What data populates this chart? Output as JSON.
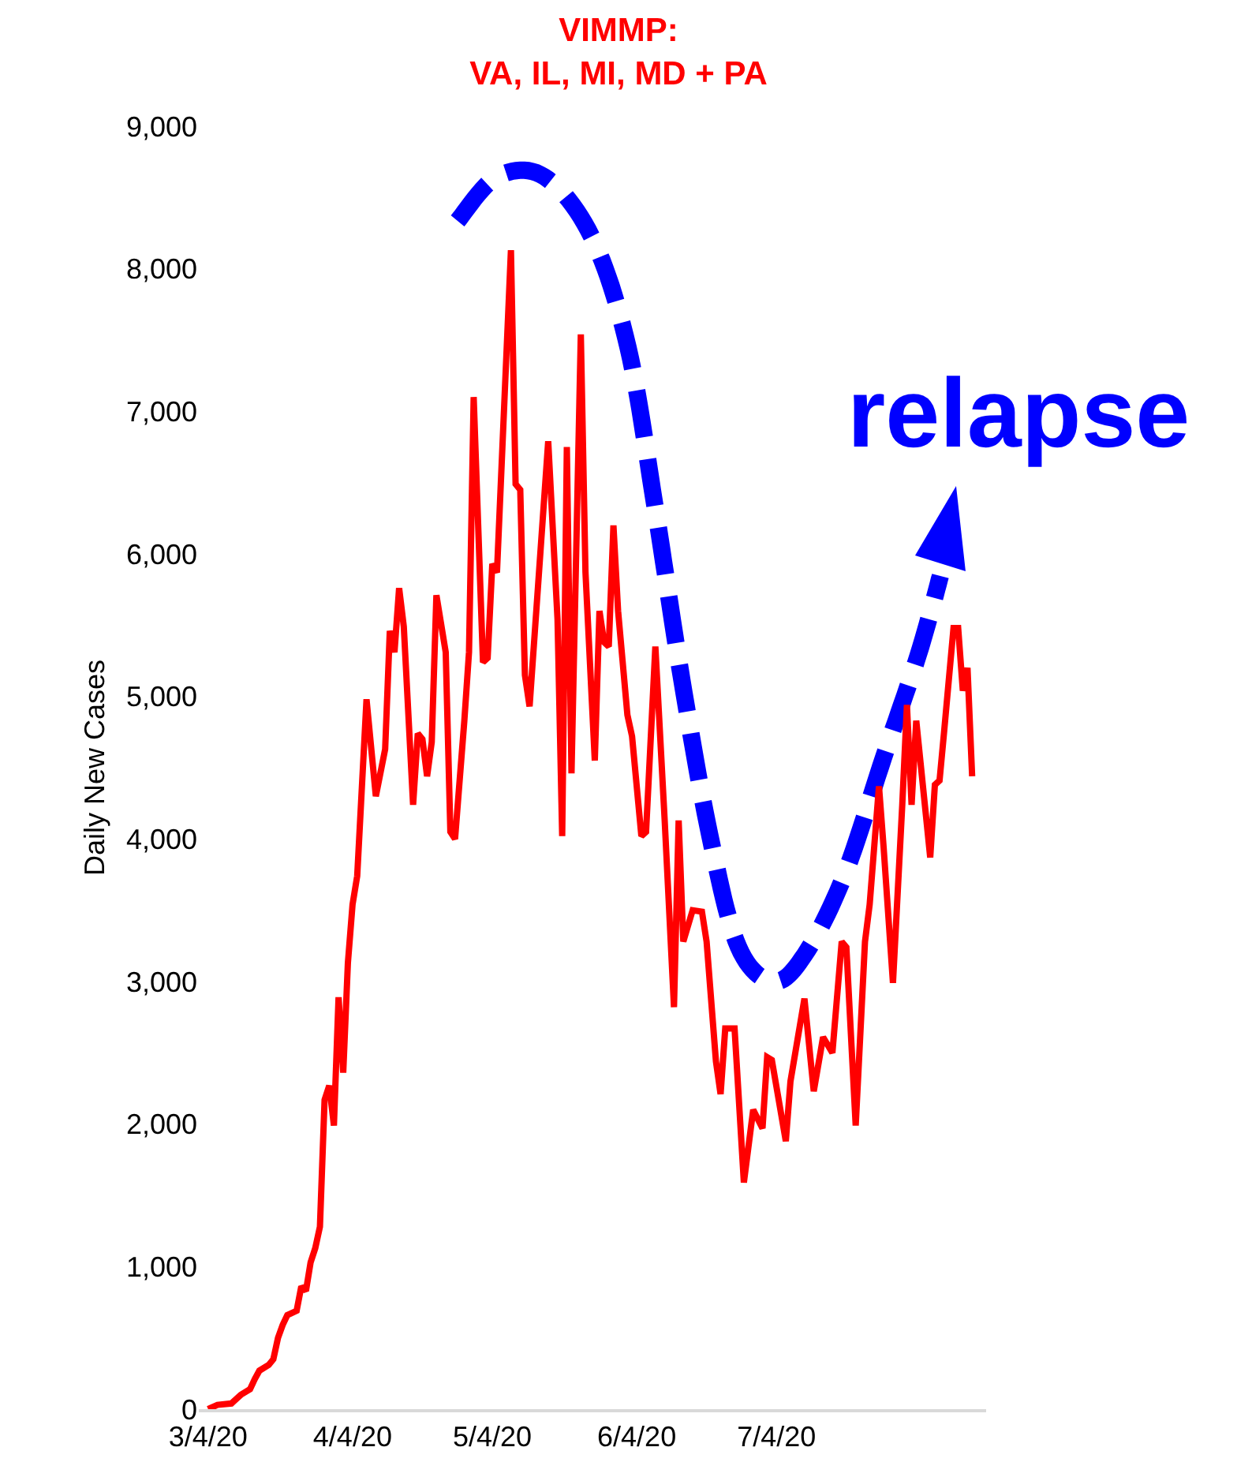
{
  "chart_data": {
    "type": "line",
    "title": "VIMMP:\nVA, IL, MI, MD + PA",
    "ylabel": "Daily New Cases",
    "x": [
      "2020-03-04",
      "2020-03-06",
      "2020-03-09",
      "2020-03-11",
      "2020-03-13",
      "2020-03-14",
      "2020-03-15",
      "2020-03-17",
      "2020-03-18",
      "2020-03-19",
      "2020-03-20",
      "2020-03-21",
      "2020-03-23",
      "2020-03-24",
      "2020-03-25",
      "2020-03-26",
      "2020-03-27",
      "2020-03-28",
      "2020-03-29",
      "2020-03-30",
      "2020-03-31",
      "2020-04-01",
      "2020-04-02",
      "2020-04-03",
      "2020-04-04",
      "2020-04-05",
      "2020-04-07",
      "2020-04-09",
      "2020-04-11",
      "2020-04-12",
      "2020-04-13",
      "2020-04-14",
      "2020-04-15",
      "2020-04-17",
      "2020-04-18",
      "2020-04-19",
      "2020-04-20",
      "2020-04-21",
      "2020-04-22",
      "2020-04-24",
      "2020-04-25",
      "2020-04-26",
      "2020-04-28",
      "2020-04-29",
      "2020-04-30",
      "2020-05-02",
      "2020-05-03",
      "2020-05-04",
      "2020-05-05",
      "2020-05-08",
      "2020-05-09",
      "2020-05-10",
      "2020-05-11",
      "2020-05-12",
      "2020-05-16",
      "2020-05-18",
      "2020-05-19",
      "2020-05-20",
      "2020-05-21",
      "2020-05-23",
      "2020-05-24",
      "2020-05-26",
      "2020-05-27",
      "2020-05-28",
      "2020-05-29",
      "2020-05-30",
      "2020-05-31",
      "2020-06-02",
      "2020-06-03",
      "2020-06-05",
      "2020-06-06",
      "2020-06-08",
      "2020-06-10",
      "2020-06-12",
      "2020-06-13",
      "2020-06-14",
      "2020-06-16",
      "2020-06-18",
      "2020-06-19",
      "2020-06-21",
      "2020-06-22",
      "2020-06-23",
      "2020-06-25",
      "2020-06-27",
      "2020-06-29",
      "2020-07-01",
      "2020-07-02",
      "2020-07-03",
      "2020-07-06",
      "2020-07-07",
      "2020-07-10",
      "2020-07-12",
      "2020-07-14",
      "2020-07-16",
      "2020-07-18",
      "2020-07-19",
      "2020-07-21",
      "2020-07-23",
      "2020-07-24",
      "2020-07-26",
      "2020-07-27",
      "2020-07-29",
      "2020-07-31",
      "2020-08-01",
      "2020-08-02",
      "2020-08-03",
      "2020-08-06",
      "2020-08-07",
      "2020-08-08",
      "2020-08-09",
      "2020-08-11",
      "2020-08-12",
      "2020-08-13",
      "2020-08-14",
      "2020-08-15"
    ],
    "series": [
      {
        "color": "#ff0000",
        "values": [
          0,
          30,
          40,
          100,
          140,
          210,
          270,
          310,
          350,
          500,
          590,
          660,
          690,
          860,
          830,
          1030,
          1130,
          1280,
          2170,
          2270,
          1990,
          2890,
          2360,
          3130,
          3540,
          3740,
          4980,
          4300,
          4630,
          5460,
          5310,
          5760,
          5490,
          4240,
          4740,
          4700,
          4440,
          4680,
          5710,
          5310,
          4050,
          4000,
          4830,
          5310,
          7100,
          5240,
          5270,
          5930,
          5870,
          8130,
          6490,
          6450,
          5150,
          4930,
          6790,
          5540,
          4020,
          6750,
          4460,
          7540,
          5870,
          4550,
          5600,
          5380,
          5350,
          6200,
          5600,
          4870,
          4720,
          4020,
          4050,
          5350,
          4130,
          2820,
          4130,
          3280,
          3500,
          3490,
          3280,
          2440,
          2210,
          2670,
          2670,
          1590,
          2100,
          1970,
          2470,
          2450,
          1880,
          2300,
          2880,
          2230,
          2610,
          2500,
          3280,
          3240,
          1990,
          3280,
          3540,
          4370,
          3940,
          2990,
          4240,
          4940,
          4240,
          4830,
          3870,
          4380,
          4410,
          4760,
          5480,
          5480,
          5040,
          5200,
          4440
        ]
      }
    ],
    "xlim": [
      "2020-03-02",
      "2020-08-18"
    ],
    "xticks": [
      {
        "value": "2020-03-04",
        "label": "3/4/20"
      },
      {
        "value": "2020-04-04",
        "label": "4/4/20"
      },
      {
        "value": "2020-05-04",
        "label": "5/4/20"
      },
      {
        "value": "2020-06-04",
        "label": "6/4/20"
      },
      {
        "value": "2020-07-04",
        "label": "7/4/20"
      }
    ],
    "ylim": [
      0,
      9000
    ],
    "yticks": [
      0,
      {
        "value": 1000,
        "label": "1,000"
      },
      {
        "value": 2000,
        "label": "2,000"
      },
      {
        "value": 3000,
        "label": "3,000"
      },
      {
        "value": 4000,
        "label": "4,000"
      },
      {
        "value": 5000,
        "label": "5,000"
      },
      {
        "value": 6000,
        "label": "6,000"
      },
      {
        "value": 7000,
        "label": "7,000"
      },
      {
        "value": 8000,
        "label": "8,000"
      },
      {
        "value": 9000,
        "label": "9,000"
      }
    ],
    "annotations": [
      "relapse"
    ],
    "marker": "none",
    "line_style": "solid"
  }
}
